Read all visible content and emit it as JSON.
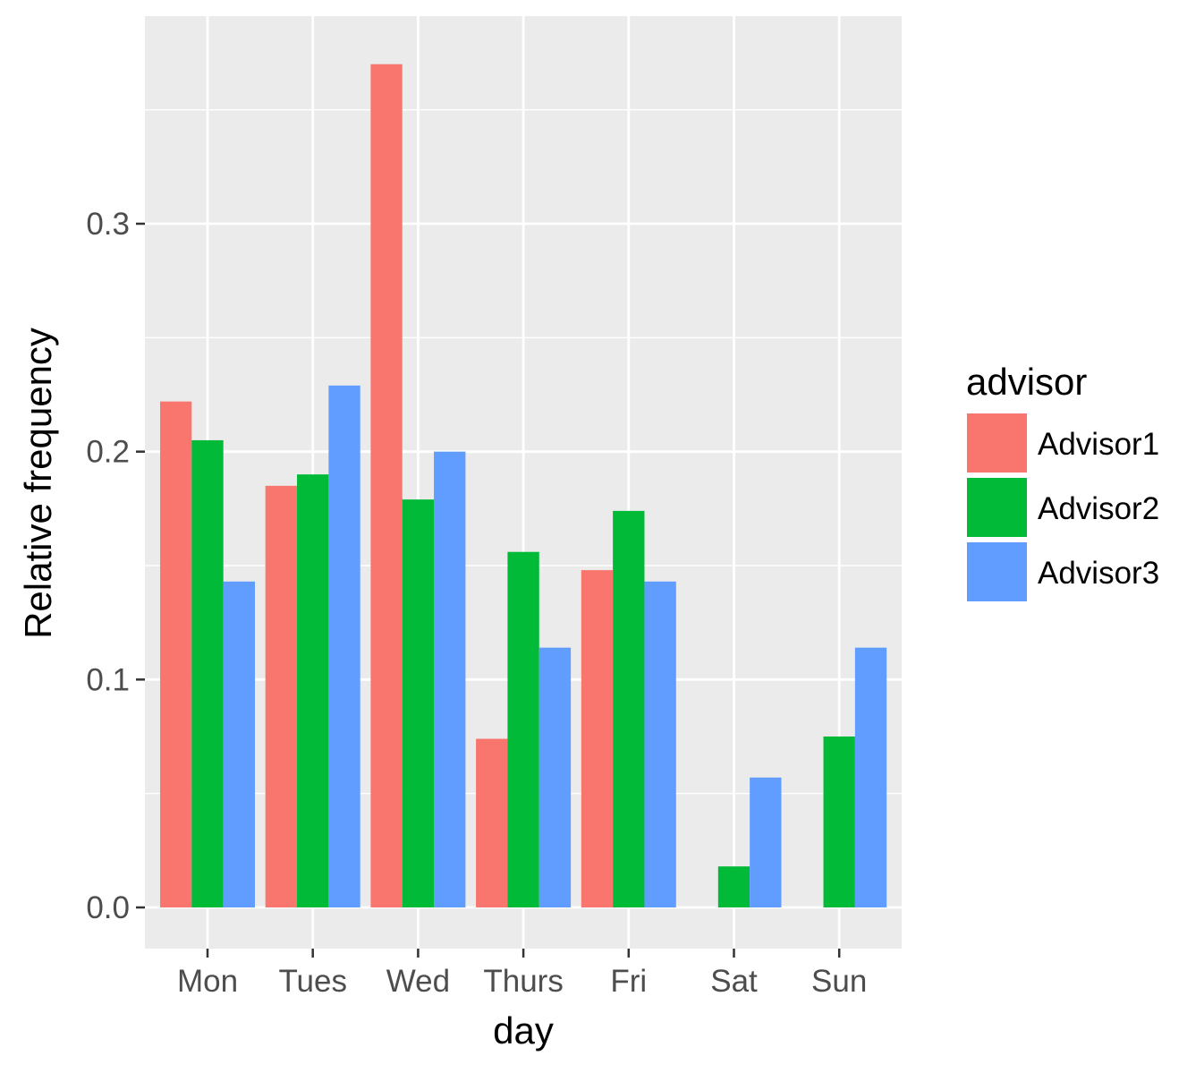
{
  "chart_data": {
    "type": "bar",
    "xlabel": "day",
    "ylabel": "Relative frequency",
    "categories": [
      "Mon",
      "Tues",
      "Wed",
      "Thurs",
      "Fri",
      "Sat",
      "Sun"
    ],
    "series": [
      {
        "name": "Advisor1",
        "color": "#f8766d",
        "values": [
          0.222,
          0.185,
          0.37,
          0.074,
          0.148,
          0.0,
          0.0
        ]
      },
      {
        "name": "Advisor2",
        "color": "#00ba38",
        "values": [
          0.205,
          0.19,
          0.179,
          0.156,
          0.174,
          0.018,
          0.075
        ]
      },
      {
        "name": "Advisor3",
        "color": "#619cff",
        "values": [
          0.143,
          0.229,
          0.2,
          0.114,
          0.143,
          0.057,
          0.114
        ]
      }
    ],
    "yticks": [
      0.0,
      0.1,
      0.2,
      0.3
    ],
    "ytick_labels": [
      "0.0",
      "0.1",
      "0.2",
      "0.3"
    ],
    "ylim": [
      -0.018,
      0.389
    ],
    "legend": {
      "title": "advisor",
      "placement": "right"
    },
    "grid": true,
    "panel_background": "#ebebeb",
    "grid_color": "#ffffff"
  }
}
